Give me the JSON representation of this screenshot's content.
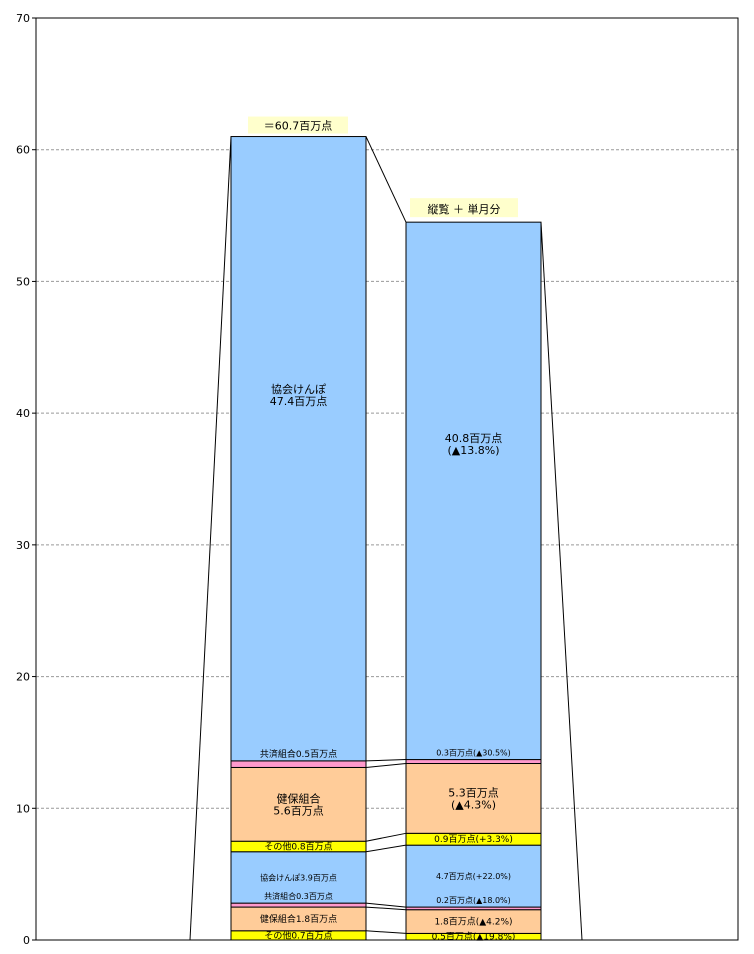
{
  "chart_data": {
    "type": "bar",
    "stacked": true,
    "ylim": [
      0,
      70
    ],
    "yticks": [
      0,
      10,
      20,
      30,
      40,
      50,
      60,
      70
    ],
    "grid": true,
    "bars": [
      {
        "id": "left",
        "top_label": "＝60.7百万点",
        "segments": [
          {
            "value": 0.7,
            "color": "#ffff00",
            "label": "その他0.7百万点"
          },
          {
            "value": 1.8,
            "color": "#ffcc99",
            "label": "健保組合1.8百万点"
          },
          {
            "value": 0.3,
            "color": "#ff99cc",
            "label": "共済組合0.3百万点"
          },
          {
            "value": 3.9,
            "color": "#99ccff",
            "label": "協会けんぽ3.9百万点"
          },
          {
            "value": 0.8,
            "color": "#ffff00",
            "label": "その他0.8百万点"
          },
          {
            "value": 5.6,
            "color": "#ffcc99",
            "label": [
              "健保組合",
              "5.6百万点"
            ]
          },
          {
            "value": 0.5,
            "color": "#ff99cc",
            "label": "共済組合0.5百万点"
          },
          {
            "value": 47.4,
            "color": "#99ccff",
            "label": [
              "協会けんぽ",
              "47.4百万点"
            ]
          }
        ]
      },
      {
        "id": "right",
        "top_label": "縦覧 ＋ 単月分",
        "segments": [
          {
            "value": 0.5,
            "color": "#ffff00",
            "label": "0.5百万点(▲19.8%)"
          },
          {
            "value": 1.8,
            "color": "#ffcc99",
            "label": "1.8百万点(▲4.2%)"
          },
          {
            "value": 0.2,
            "color": "#ff99cc",
            "label": "0.2百万点(▲18.0%)"
          },
          {
            "value": 4.7,
            "color": "#99ccff",
            "label": "4.7百万点(+22.0%)"
          },
          {
            "value": 0.9,
            "color": "#ffff00",
            "label": "0.9百万点(+3.3%)"
          },
          {
            "value": 5.3,
            "color": "#ffcc99",
            "label": [
              "5.3百万点",
              "(▲4.3%)"
            ]
          },
          {
            "value": 0.3,
            "color": "#ff99cc",
            "label": "0.3百万点(▲30.5%)"
          },
          {
            "value": 40.8,
            "color": "#99ccff",
            "label": [
              "40.8百万点",
              "(▲13.8%)"
            ]
          }
        ]
      }
    ]
  }
}
